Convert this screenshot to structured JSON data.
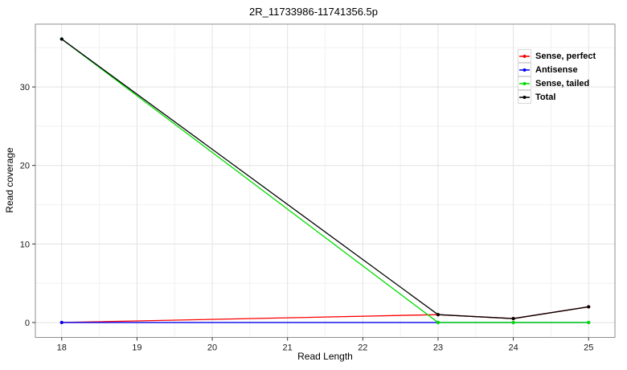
{
  "chart_data": {
    "type": "line",
    "title": "2R_11733986-11741356.5p",
    "xlabel": "Read Length",
    "ylabel": "Read coverage",
    "x": [
      18,
      23,
      24,
      25
    ],
    "series": [
      {
        "name": "Sense, perfect",
        "color": "#ff0000",
        "values": [
          0,
          1,
          0.5,
          2
        ]
      },
      {
        "name": "Antisense",
        "color": "#0000ee",
        "values": [
          0,
          0,
          0,
          0
        ]
      },
      {
        "name": "Sense, tailed",
        "color": "#00dd00",
        "values": [
          36.1,
          0,
          0,
          0
        ]
      },
      {
        "name": "Total",
        "color": "#000000",
        "values": [
          36.1,
          1,
          0.5,
          2
        ]
      }
    ],
    "x_ticks": [
      18,
      19,
      20,
      21,
      22,
      23,
      24,
      25
    ],
    "y_ticks": [
      0,
      10,
      20,
      30
    ],
    "xlim": [
      17.65,
      25.35
    ],
    "ylim": [
      -1.9,
      38.0
    ],
    "grid": "major+minor",
    "legend_position": "top-right-inside",
    "colors": {
      "grid_major": "#e2e2e2",
      "grid_minor": "#f1f1f1",
      "panel_border": "#8e8e8e",
      "tick_mark": "#333333",
      "background": "#ffffff"
    }
  }
}
